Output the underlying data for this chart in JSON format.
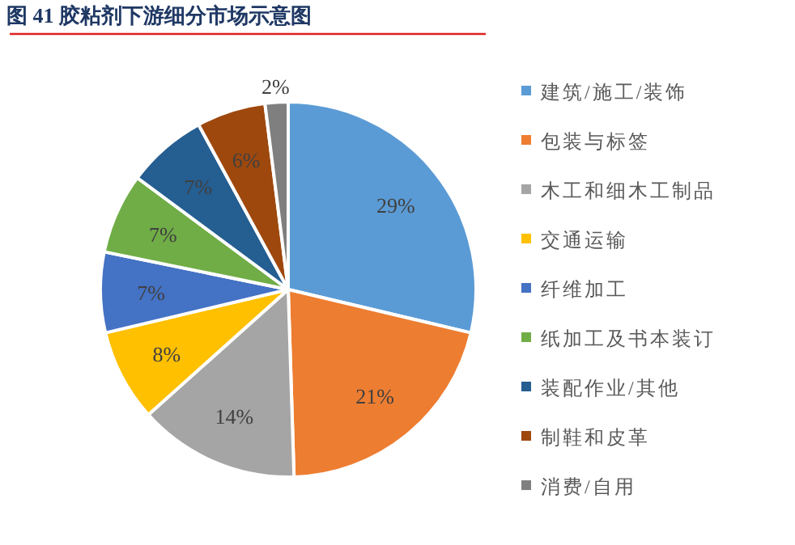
{
  "chart_data": {
    "type": "pie",
    "title": "图 41 胶粘剂下游细分市场示意图",
    "categories": [
      "建筑/施工/装饰",
      "包装与标签",
      "木工和细木工制品",
      "交通运输",
      "纤维加工",
      "纸加工及书本装订",
      "装配作业/其他",
      "制鞋和皮革",
      "消费/自用"
    ],
    "values": [
      29,
      21,
      14,
      8,
      7,
      7,
      7,
      6,
      2
    ],
    "colors": [
      "#5b9bd5",
      "#ed7d31",
      "#a5a5a5",
      "#ffc000",
      "#4472c4",
      "#70ad47",
      "#255e91",
      "#9e480e",
      "#7f7f7f"
    ],
    "value_labels": [
      "29%",
      "21%",
      "14%",
      "8%",
      "7%",
      "7%",
      "7%",
      "6%",
      "2%"
    ],
    "legend": "right"
  }
}
